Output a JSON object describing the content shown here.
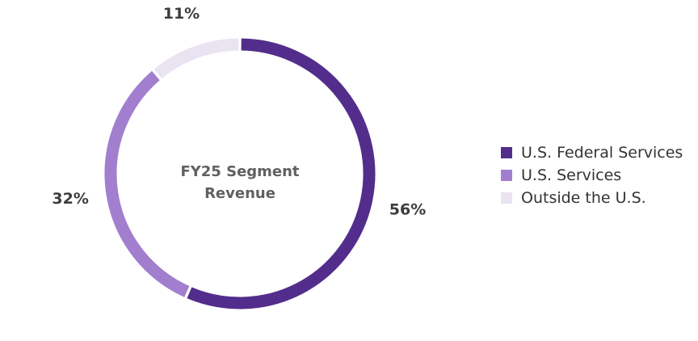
{
  "chart_data": {
    "type": "pie",
    "subtype": "donut",
    "center_title_lines": [
      "FY25 Segment",
      "Revenue"
    ],
    "categories": [
      "U.S. Federal Services",
      "U.S. Services",
      "Outside the U.S."
    ],
    "values": [
      56,
      32,
      11
    ],
    "value_labels": [
      "56%",
      "32%",
      "11%"
    ],
    "colors": [
      "#532d8c",
      "#a27fce",
      "#e9e3f2"
    ],
    "legend_position": "right"
  }
}
